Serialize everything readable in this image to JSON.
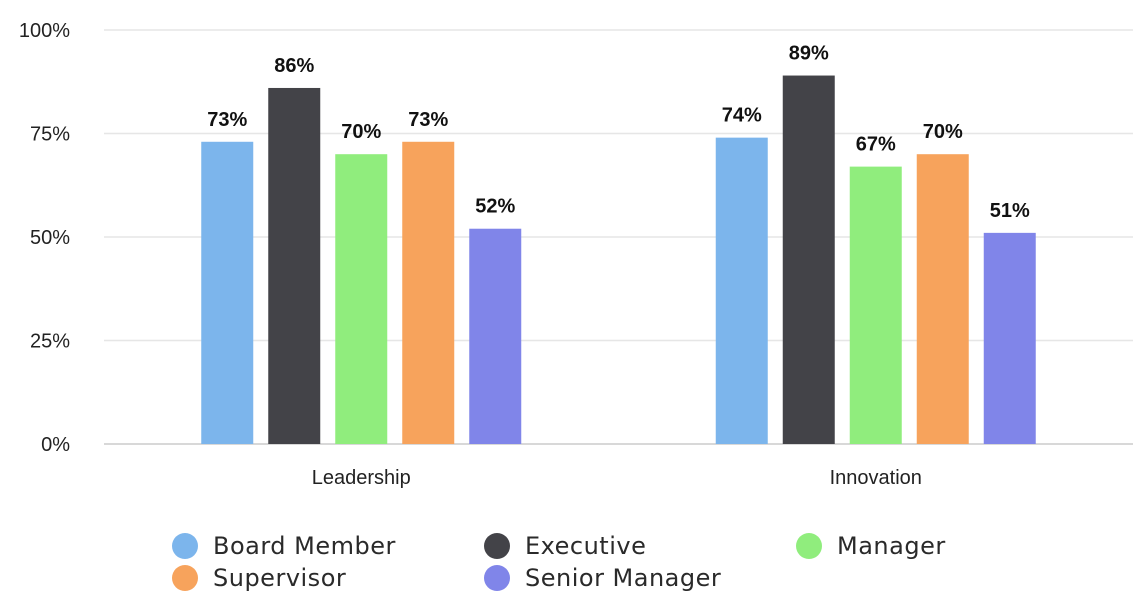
{
  "chart_data": {
    "type": "bar",
    "categories": [
      "Leadership",
      "Innovation"
    ],
    "series": [
      {
        "name": "Board Member",
        "values": [
          73,
          74
        ],
        "labels": [
          "73%",
          "74%"
        ],
        "color": "#7cb5ec"
      },
      {
        "name": "Executive",
        "values": [
          86,
          89
        ],
        "labels": [
          "86%",
          "89%"
        ],
        "color": "#434348"
      },
      {
        "name": "Manager",
        "values": [
          70,
          67
        ],
        "labels": [
          "70%",
          "67%"
        ],
        "color": "#90ed7d"
      },
      {
        "name": "Supervisor",
        "values": [
          73,
          70
        ],
        "labels": [
          "73%",
          "70%"
        ],
        "color": "#f7a35c"
      },
      {
        "name": "Senior Manager",
        "values": [
          52,
          51
        ],
        "labels": [
          "52%",
          "51%"
        ],
        "color": "#8085e9"
      }
    ],
    "y_ticks": [
      {
        "value": 0,
        "label": "0%"
      },
      {
        "value": 25,
        "label": "25%"
      },
      {
        "value": 50,
        "label": "50%"
      },
      {
        "value": 75,
        "label": "75%"
      },
      {
        "value": 100,
        "label": "100%"
      }
    ],
    "ylim": [
      0,
      100
    ],
    "title": "",
    "xlabel": "",
    "ylabel": "",
    "grid": true,
    "legend_position": "bottom"
  },
  "colors": {
    "grid": "#e6e6e6",
    "axis": "#cccccc"
  }
}
